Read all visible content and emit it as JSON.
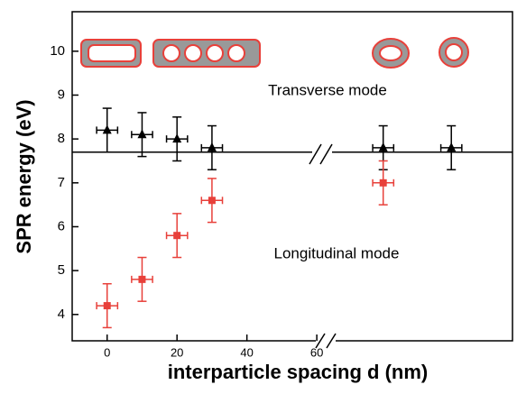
{
  "chart_data": {
    "type": "scatter",
    "xlabel": "interparticle spacing d (nm)",
    "ylabel": "SPR energy (eV)",
    "xlim": [
      -10,
      116
    ],
    "ylim": [
      3.4,
      10.9
    ],
    "xticks": [
      0,
      20,
      40,
      60
    ],
    "yticks": [
      4,
      5,
      6,
      7,
      8,
      9,
      10
    ],
    "hline": 7.7,
    "annotations": [
      "Transverse mode",
      "Longitudinal  mode"
    ],
    "series": [
      {
        "color": "#000000",
        "marker": "triangle",
        "x": [
          0,
          10,
          20,
          30,
          79,
          98.5
        ],
        "values": [
          8.2,
          8.1,
          8.0,
          7.8,
          7.8,
          7.8
        ],
        "yerr": 0.5,
        "xerr": 3
      },
      {
        "color": "#e8403a",
        "marker": "square",
        "x": [
          0,
          10,
          20,
          30,
          79
        ],
        "values": [
          4.2,
          4.8,
          5.8,
          6.6,
          7.0
        ],
        "yerr": 0.5,
        "xerr": 3
      }
    ]
  }
}
